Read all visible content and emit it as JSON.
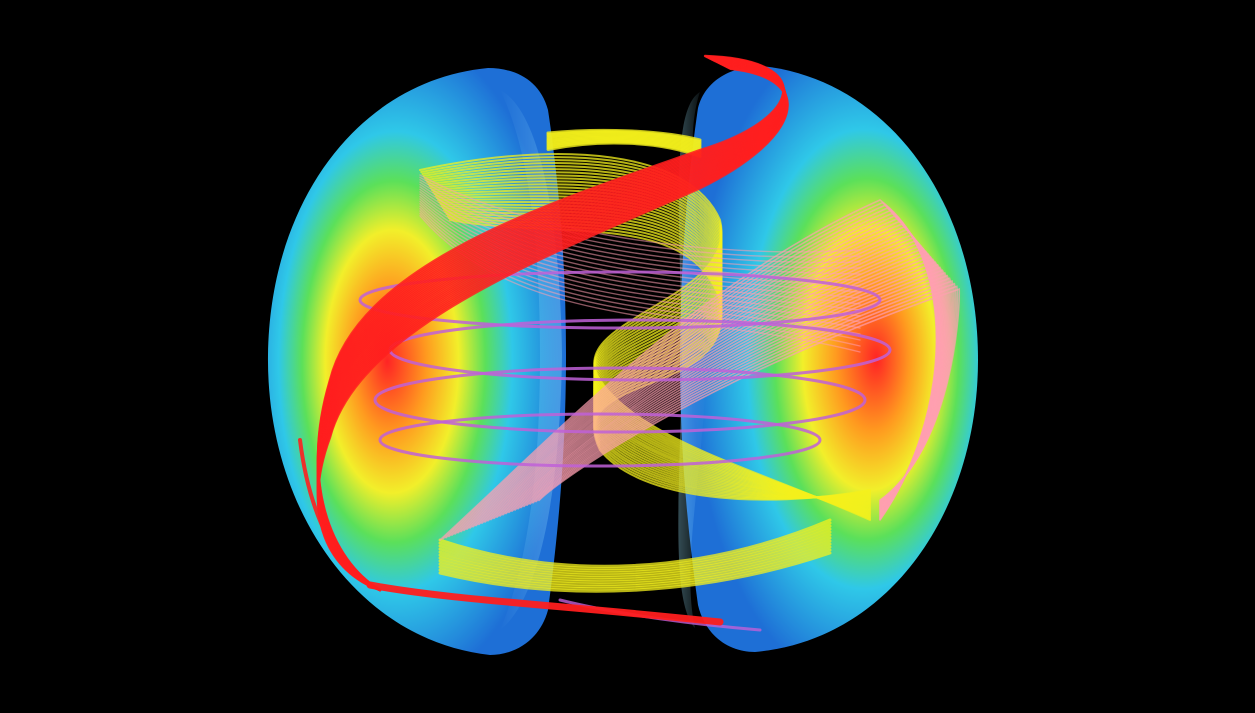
{
  "colors": {
    "background": "#000000",
    "plasma_outer": "#1e6fd6",
    "plasma_mid": "#2fc8e8",
    "plasma_green": "#5be05a",
    "plasma_yellow": "#f2ef2a",
    "plasma_orange": "#ff9a1f",
    "plasma_core": "#ff2424",
    "field_red": "#ff1e1e",
    "field_yellow": "#f4f01c",
    "field_pink": "#ff9fb0",
    "field_violet": "#c060d8"
  },
  "elements": [
    "plasma-cross-section-left",
    "plasma-cross-section-right",
    "field-line-bundle-red",
    "field-line-bundle-yellow",
    "field-line-bundle-pink",
    "field-line-loops-violet"
  ]
}
